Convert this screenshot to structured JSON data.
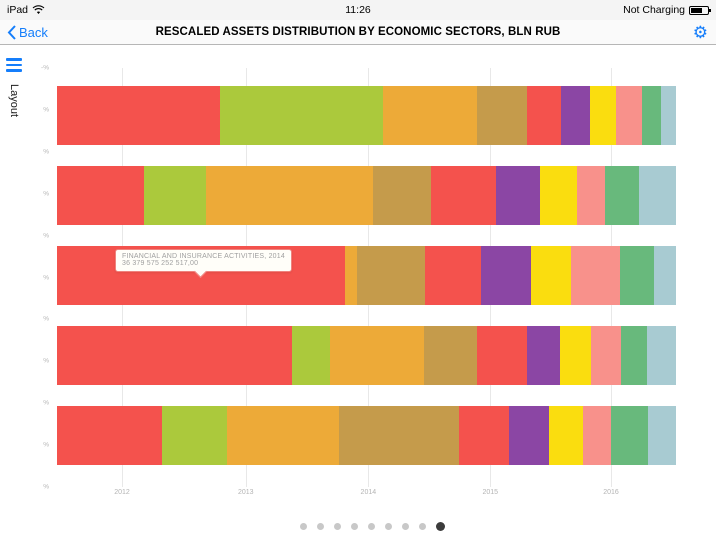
{
  "status_bar": {
    "device": "iPad",
    "time": "11:26",
    "battery": "Not Charging"
  },
  "nav_bar": {
    "back": "Back",
    "title": "RESCALED ASSETS DISTRIBUTION BY ECONOMIC SECTORS, BLN RUB"
  },
  "icons": {
    "gear": "⚙"
  },
  "sidebar": {
    "menu_label": "Layout"
  },
  "tooltip": {
    "title": "FINANCIAL AND INSURANCE ACTIVITIES, 2014",
    "value": "36 379 575 252 517,00"
  },
  "pagination": {
    "count": 9,
    "active_index": 8
  },
  "colors": {
    "accent": "#157efb",
    "tooltip_border": "#ef837d",
    "gridline": "#e8e8e8",
    "dot_inactive": "#9a9a9a",
    "dot_active": "#3c3c3c"
  },
  "chart_data": {
    "type": "bar",
    "variant": "horizontal-stacked-rescaled-100pct",
    "title": "RESCALED ASSETS DISTRIBUTION BY ECONOMIC SECTORS, BLN RUB",
    "x_ticks": [
      "2012",
      "2013",
      "2014",
      "2015",
      "2016"
    ],
    "x_tick_positions_pct": [
      10.5,
      30.5,
      50.3,
      70,
      89.5
    ],
    "y_tick_labels": [
      "-%",
      "%",
      "%",
      "%",
      "%",
      "%",
      "%",
      "%",
      "%",
      "%",
      "%"
    ],
    "segment_colors": [
      "#f4524d",
      "#abc93c",
      "#edaa38",
      "#c59b4b",
      "#f4524d",
      "#8b46a4",
      "#fadd0f",
      "#f8918b",
      "#68b97c",
      "#a8cbd2"
    ],
    "highlighted_segment": {
      "row": 3,
      "label": "FINANCIAL AND INSURANCE ACTIVITIES, 2014",
      "value": "36 379 575 252 517,00"
    },
    "rows": [
      {
        "values": [
          26.3,
          26.3,
          15.2,
          8.1,
          5.5,
          4.7,
          4.2,
          4.2,
          3.1,
          2.4
        ]
      },
      {
        "values": [
          14.0,
          10.0,
          27.0,
          9.5,
          10.5,
          7.0,
          6.0,
          4.5,
          5.5,
          6.0
        ]
      },
      {
        "values": [
          46.5,
          0.0,
          2.0,
          11.0,
          9.0,
          8.0,
          6.5,
          8.0,
          5.5,
          3.5
        ]
      },
      {
        "values": [
          38.0,
          6.1,
          15.2,
          8.6,
          8.1,
          5.3,
          5.0,
          4.8,
          4.2,
          4.7
        ]
      },
      {
        "values": [
          17.0,
          10.5,
          18.0,
          19.5,
          8.0,
          6.5,
          5.5,
          4.5,
          6.0,
          4.5
        ]
      }
    ],
    "grid": true,
    "legend": "none"
  }
}
